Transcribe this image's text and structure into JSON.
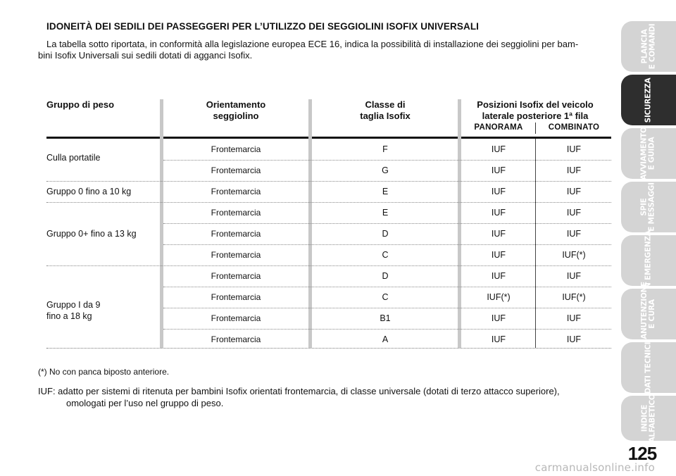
{
  "heading": "IDONEITÀ DEI SEDILI DEI PASSEGGERI PER L’UTILIZZO DEI SEGGIOLINI ISOFIX UNIVERSALI",
  "intro_line1": "La tabella sotto riportata, in conformità alla legislazione europea ECE 16, indica la possibilità di installazione dei seggiolini per bam-",
  "intro_line2": "bini Isofix Universali sui sedili dotati di agganci Isofix.",
  "table": {
    "headers": {
      "weight": "Gruppo di peso",
      "orient_1": "Orientamento",
      "orient_2": "seggiolino",
      "class_1": "Classe di",
      "class_2": "taglia Isofix",
      "pos_1": "Posizioni Isofix del veicolo",
      "pos_2": "laterale posteriore 1ª fila",
      "panorama": "PANORAMA",
      "combinato": "COMBINATO"
    },
    "groups": [
      {
        "label_1": "Culla portatile",
        "label_2": ""
      },
      {
        "label_1": "Gruppo 0 fino a 10 kg",
        "label_2": ""
      },
      {
        "label_1": "Gruppo 0+ fino a 13 kg",
        "label_2": ""
      },
      {
        "label_1": "Gruppo I da 9",
        "label_2": "fino a 18 kg"
      }
    ],
    "rows": [
      {
        "orient": "Frontemarcia",
        "class": "F",
        "panorama": "IUF",
        "combinato": "IUF"
      },
      {
        "orient": "Frontemarcia",
        "class": "G",
        "panorama": "IUF",
        "combinato": "IUF"
      },
      {
        "orient": "Frontemarcia",
        "class": "E",
        "panorama": "IUF",
        "combinato": "IUF"
      },
      {
        "orient": "Frontemarcia",
        "class": "E",
        "panorama": "IUF",
        "combinato": "IUF"
      },
      {
        "orient": "Frontemarcia",
        "class": "D",
        "panorama": "IUF",
        "combinato": "IUF"
      },
      {
        "orient": "Frontemarcia",
        "class": "C",
        "panorama": "IUF",
        "combinato": "IUF(*)"
      },
      {
        "orient": "Frontemarcia",
        "class": "D",
        "panorama": "IUF",
        "combinato": "IUF"
      },
      {
        "orient": "Frontemarcia",
        "class": "C",
        "panorama": "IUF(*)",
        "combinato": "IUF(*)"
      },
      {
        "orient": "Frontemarcia",
        "class": "B1",
        "panorama": "IUF",
        "combinato": "IUF"
      },
      {
        "orient": "Frontemarcia",
        "class": "A",
        "panorama": "IUF",
        "combinato": "IUF"
      }
    ]
  },
  "footnote": "(*) No con panca biposto anteriore.",
  "iuf_line1": "IUF: adatto per sistemi di ritenuta per bambini Isofix orientati frontemarcia, di classe universale (dotati di terzo attacco superiore),",
  "iuf_line2": "omologati per l’uso nel gruppo di peso.",
  "side_tabs": [
    {
      "line1": "PLANCIA",
      "line2": "E COMANDI",
      "active": false
    },
    {
      "line1": "SICUREZZA",
      "line2": "",
      "active": true
    },
    {
      "line1": "AVVIAMENTO",
      "line2": "E GUIDA",
      "active": false
    },
    {
      "line1": "SPIE",
      "line2": "E MESSAGGI",
      "active": false
    },
    {
      "line1": "IN EMERGENZA",
      "line2": "",
      "active": false
    },
    {
      "line1": "MANUTENZIONE",
      "line2": "E CURA",
      "active": false
    },
    {
      "line1": "DATI TECNICI",
      "line2": "",
      "active": false
    },
    {
      "line1": "INDICE",
      "line2": "ALFABETICO",
      "active": false
    }
  ],
  "page_number": "125",
  "watermark": "carmanualsonline.info"
}
